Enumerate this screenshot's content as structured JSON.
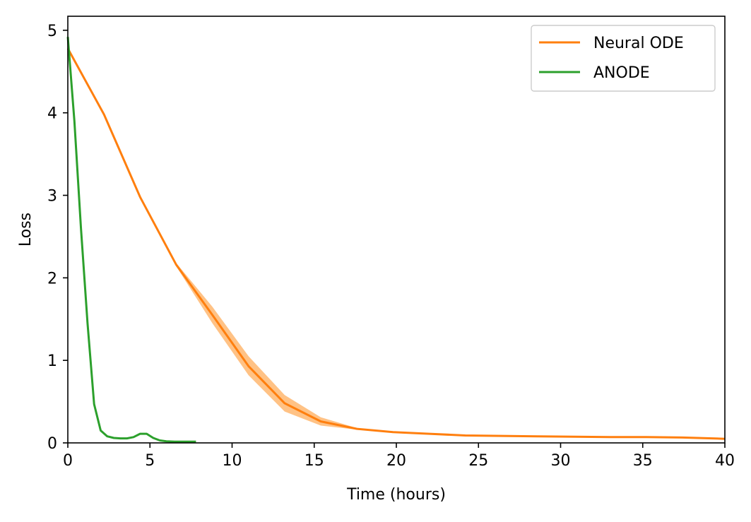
{
  "chart_data": {
    "type": "line",
    "title": "",
    "xlabel": "Time (hours)",
    "ylabel": "Loss",
    "xlim": [
      0,
      40
    ],
    "ylim": [
      0,
      5.17
    ],
    "xticks": [
      0,
      5,
      10,
      15,
      20,
      25,
      30,
      35,
      40
    ],
    "yticks": [
      0,
      1,
      2,
      3,
      4,
      5
    ],
    "grid": false,
    "legend_position": "top-right",
    "series": [
      {
        "name": "Neural ODE",
        "color": "#ff7f0e",
        "band_color": "#ffbb78",
        "x": [
          0,
          2.2,
          4.4,
          6.6,
          8.8,
          11.0,
          13.2,
          15.4,
          17.6,
          19.8,
          22.0,
          24.2,
          26.4,
          28.6,
          30.8,
          33.0,
          35.2,
          37.4,
          40
        ],
        "y": [
          4.78,
          3.98,
          2.98,
          2.16,
          1.55,
          0.93,
          0.48,
          0.26,
          0.17,
          0.13,
          0.11,
          0.09,
          0.085,
          0.08,
          0.075,
          0.07,
          0.07,
          0.065,
          0.05
        ],
        "lower": [
          4.78,
          3.98,
          2.98,
          2.14,
          1.45,
          0.82,
          0.38,
          0.21,
          0.16,
          0.125,
          0.105,
          0.085,
          0.08,
          0.075,
          0.07,
          0.065,
          0.065,
          0.06,
          0.045
        ],
        "upper": [
          4.78,
          3.98,
          2.98,
          2.18,
          1.65,
          1.05,
          0.58,
          0.31,
          0.18,
          0.135,
          0.115,
          0.095,
          0.09,
          0.085,
          0.08,
          0.075,
          0.075,
          0.07,
          0.055
        ]
      },
      {
        "name": "ANODE",
        "color": "#2ca02c",
        "x": [
          0,
          0.4,
          0.8,
          1.2,
          1.6,
          2.0,
          2.4,
          2.8,
          3.2,
          3.6,
          4.0,
          4.4,
          4.8,
          5.2,
          5.6,
          6.0,
          6.5,
          7.0,
          7.8
        ],
        "y": [
          4.92,
          3.9,
          2.6,
          1.45,
          0.47,
          0.15,
          0.08,
          0.06,
          0.055,
          0.055,
          0.07,
          0.11,
          0.11,
          0.06,
          0.03,
          0.02,
          0.015,
          0.015,
          0.015
        ]
      }
    ]
  }
}
